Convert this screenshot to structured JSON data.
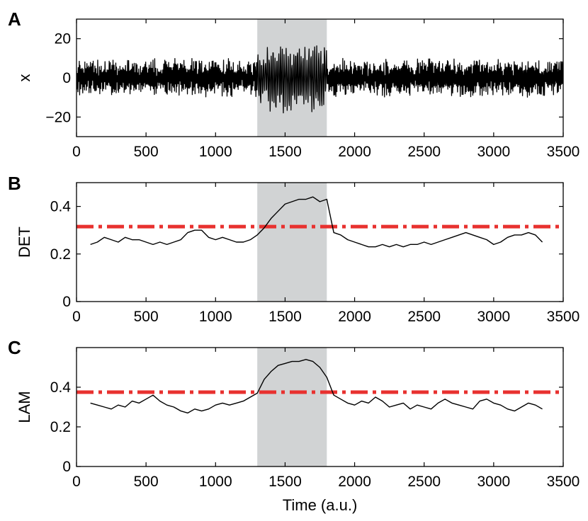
{
  "chart_data": [
    {
      "type": "line",
      "panel_label": "A",
      "ylabel": "x",
      "xlabel": "",
      "xlim": [
        0,
        3500
      ],
      "ylim": [
        -30,
        30
      ],
      "xticks": [
        0,
        500,
        1000,
        1500,
        2000,
        2500,
        3000,
        3500
      ],
      "yticks": [
        -20,
        0,
        20
      ],
      "ytick_labels": [
        "−20",
        "0",
        "20"
      ],
      "shaded_region": [
        1300,
        1800
      ],
      "signal": {
        "description": "Dense oscillating signal around zero",
        "x_range": [
          0,
          3500
        ],
        "amplitude_baseline": 10,
        "amplitude_in_region": 18,
        "min": -22,
        "max": 19
      },
      "series": [
        {
          "values_ref": "signal",
          "color": "#000000"
        }
      ]
    },
    {
      "type": "line",
      "panel_label": "B",
      "ylabel": "DET",
      "xlabel": "",
      "xlim": [
        0,
        3500
      ],
      "ylim": [
        0,
        0.5
      ],
      "xticks": [
        0,
        500,
        1000,
        1500,
        2000,
        2500,
        3000,
        3500
      ],
      "yticks": [
        0,
        0.2,
        0.4
      ],
      "ytick_labels": [
        "0",
        "0.2",
        "0.4"
      ],
      "shaded_region": [
        1300,
        1800
      ],
      "threshold": 0.315,
      "series": [
        {
          "color": "#000000",
          "x": [
            100,
            150,
            200,
            250,
            300,
            350,
            400,
            450,
            500,
            550,
            600,
            650,
            700,
            750,
            800,
            850,
            900,
            950,
            1000,
            1050,
            1100,
            1150,
            1200,
            1250,
            1300,
            1350,
            1400,
            1450,
            1500,
            1550,
            1600,
            1650,
            1700,
            1750,
            1800,
            1850,
            1900,
            1950,
            2000,
            2050,
            2100,
            2150,
            2200,
            2250,
            2300,
            2350,
            2400,
            2450,
            2500,
            2550,
            2600,
            2650,
            2700,
            2750,
            2800,
            2850,
            2900,
            2950,
            3000,
            3050,
            3100,
            3150,
            3200,
            3250,
            3300,
            3350
          ],
          "y": [
            0.24,
            0.25,
            0.27,
            0.26,
            0.25,
            0.27,
            0.26,
            0.26,
            0.25,
            0.24,
            0.25,
            0.24,
            0.25,
            0.26,
            0.29,
            0.3,
            0.3,
            0.27,
            0.26,
            0.27,
            0.26,
            0.25,
            0.25,
            0.26,
            0.28,
            0.31,
            0.35,
            0.38,
            0.41,
            0.42,
            0.43,
            0.43,
            0.44,
            0.42,
            0.43,
            0.29,
            0.28,
            0.26,
            0.25,
            0.24,
            0.23,
            0.23,
            0.24,
            0.23,
            0.24,
            0.23,
            0.24,
            0.24,
            0.25,
            0.24,
            0.25,
            0.26,
            0.27,
            0.28,
            0.29,
            0.28,
            0.27,
            0.26,
            0.24,
            0.25,
            0.27,
            0.28,
            0.28,
            0.29,
            0.28,
            0.25
          ]
        }
      ]
    },
    {
      "type": "line",
      "panel_label": "C",
      "ylabel": "LAM",
      "xlabel": "Time (a.u.)",
      "xlim": [
        0,
        3500
      ],
      "ylim": [
        0,
        0.6
      ],
      "xticks": [
        0,
        500,
        1000,
        1500,
        2000,
        2500,
        3000,
        3500
      ],
      "yticks": [
        0,
        0.2,
        0.4
      ],
      "ytick_labels": [
        "0",
        "0.2",
        "0.4"
      ],
      "shaded_region": [
        1300,
        1800
      ],
      "threshold": 0.375,
      "series": [
        {
          "color": "#000000",
          "x": [
            100,
            150,
            200,
            250,
            300,
            350,
            400,
            450,
            500,
            550,
            600,
            650,
            700,
            750,
            800,
            850,
            900,
            950,
            1000,
            1050,
            1100,
            1150,
            1200,
            1250,
            1300,
            1350,
            1400,
            1450,
            1500,
            1550,
            1600,
            1650,
            1700,
            1750,
            1800,
            1850,
            1900,
            1950,
            2000,
            2050,
            2100,
            2150,
            2200,
            2250,
            2300,
            2350,
            2400,
            2450,
            2500,
            2550,
            2600,
            2650,
            2700,
            2750,
            2800,
            2850,
            2900,
            2950,
            3000,
            3050,
            3100,
            3150,
            3200,
            3250,
            3300,
            3350
          ],
          "y": [
            0.32,
            0.31,
            0.3,
            0.29,
            0.31,
            0.3,
            0.33,
            0.32,
            0.34,
            0.36,
            0.33,
            0.31,
            0.3,
            0.28,
            0.27,
            0.29,
            0.28,
            0.29,
            0.31,
            0.32,
            0.31,
            0.32,
            0.33,
            0.35,
            0.37,
            0.44,
            0.48,
            0.51,
            0.52,
            0.53,
            0.53,
            0.54,
            0.53,
            0.5,
            0.45,
            0.36,
            0.34,
            0.32,
            0.31,
            0.33,
            0.32,
            0.35,
            0.33,
            0.3,
            0.31,
            0.32,
            0.29,
            0.31,
            0.3,
            0.29,
            0.32,
            0.34,
            0.32,
            0.31,
            0.3,
            0.29,
            0.33,
            0.34,
            0.32,
            0.31,
            0.29,
            0.28,
            0.3,
            0.32,
            0.31,
            0.29
          ]
        }
      ]
    }
  ],
  "colors": {
    "shade": "#d1d3d4",
    "threshold": "#e8312f",
    "line": "#000000"
  }
}
